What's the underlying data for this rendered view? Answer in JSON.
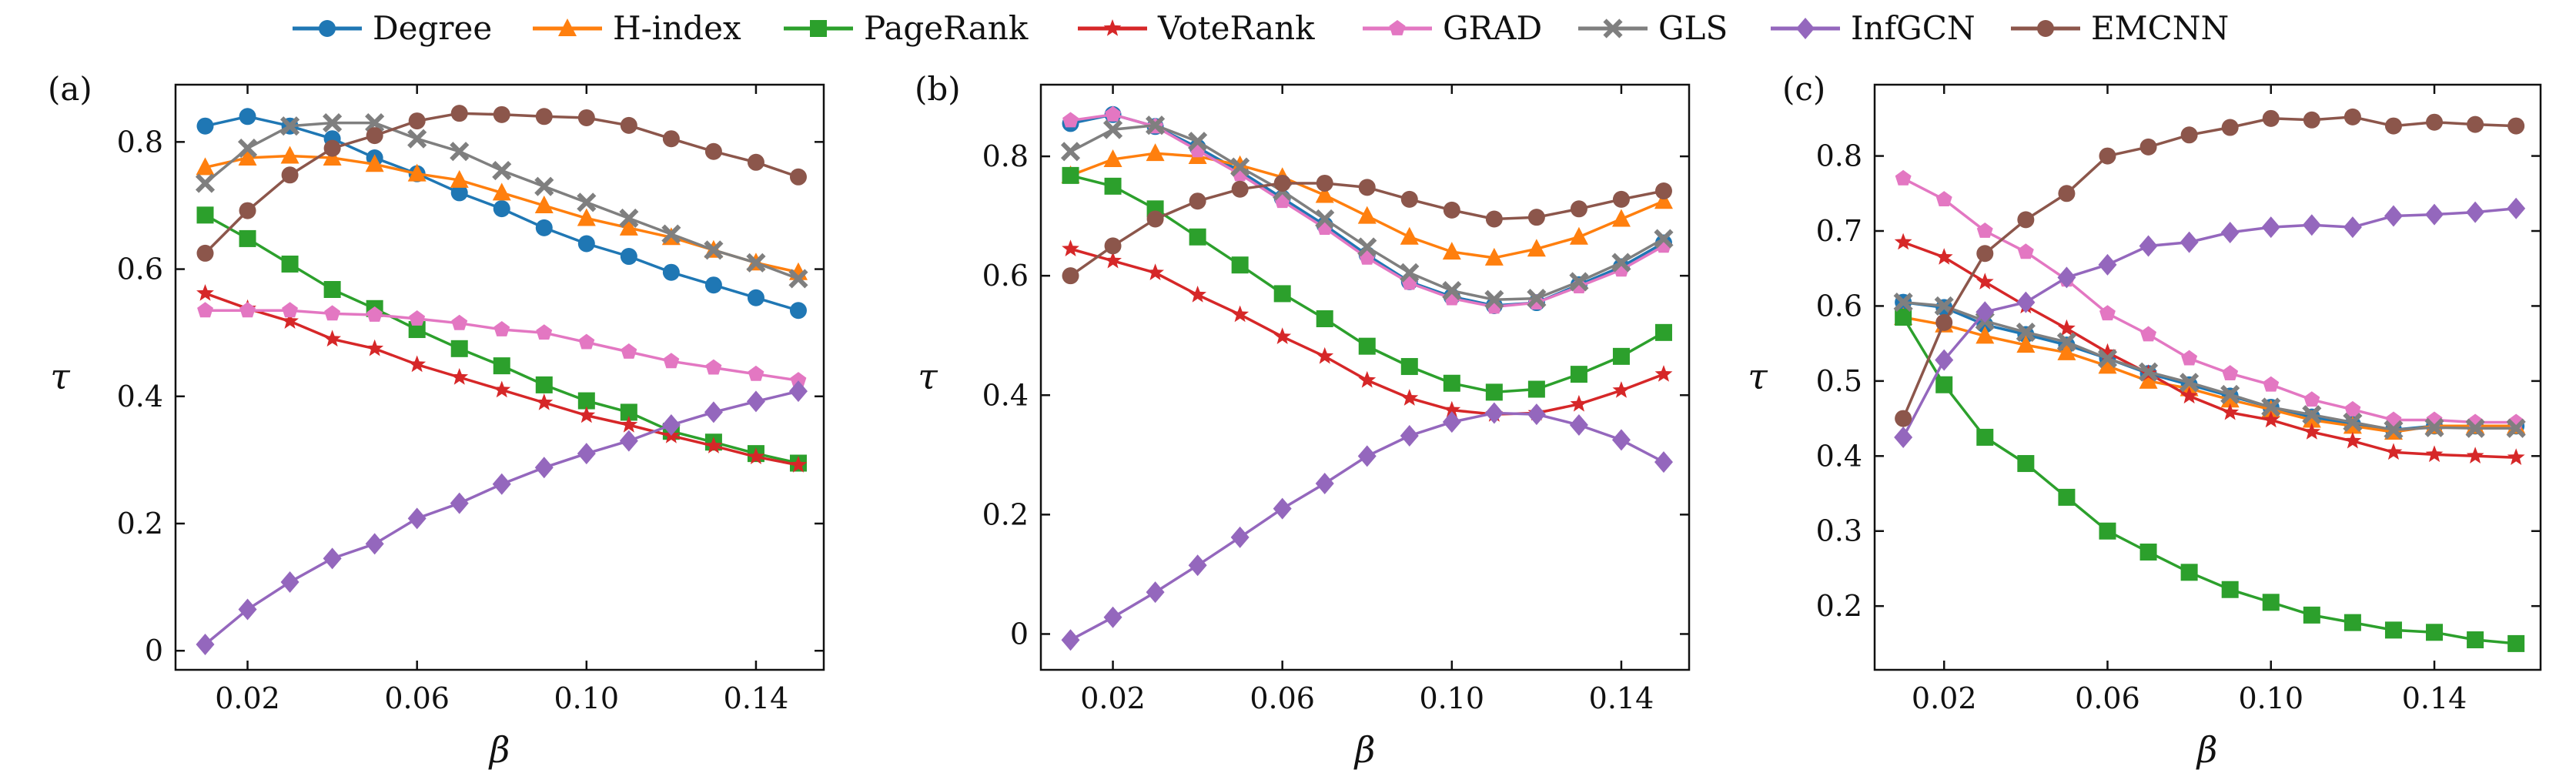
{
  "chart_data": {
    "type": "line",
    "x": [
      0.01,
      0.02,
      0.03,
      0.04,
      0.05,
      0.06,
      0.07,
      0.08,
      0.09,
      0.1,
      0.11,
      0.12,
      0.13,
      0.14,
      0.15
    ],
    "legend": [
      {
        "name": "Degree",
        "color": "#1f77b4",
        "marker": "circle"
      },
      {
        "name": "H-index",
        "color": "#ff7f0e",
        "marker": "triangle"
      },
      {
        "name": "PageRank",
        "color": "#2ca02c",
        "marker": "square"
      },
      {
        "name": "VoteRank",
        "color": "#d62728",
        "marker": "star"
      },
      {
        "name": "GRAD",
        "color": "#e377c2",
        "marker": "pentagon"
      },
      {
        "name": "GLS",
        "color": "#7f7f7f",
        "marker": "x"
      },
      {
        "name": "InfGCN",
        "color": "#9467bd",
        "marker": "diamond"
      },
      {
        "name": "EMCNN",
        "color": "#8c564b",
        "marker": "circle"
      }
    ],
    "panels": [
      {
        "label": "(a)",
        "xlabel": "β",
        "ylabel": "τ",
        "xlim": [
          0.003,
          0.156
        ],
        "ylim": [
          -0.03,
          0.89
        ],
        "xticks": [
          0.02,
          0.06,
          0.1,
          0.14
        ],
        "xtick_labels": [
          "0.02",
          "0.06",
          "0.10",
          "0.14"
        ],
        "yticks": [
          0,
          0.2,
          0.4,
          0.6,
          0.8
        ],
        "ytick_labels": [
          "0",
          "0.2",
          "0.4",
          "0.6",
          "0.8"
        ],
        "series": [
          {
            "name": "Degree",
            "values": [
              0.825,
              0.84,
              0.825,
              0.805,
              0.775,
              0.75,
              0.72,
              0.695,
              0.665,
              0.64,
              0.62,
              0.595,
              0.575,
              0.555,
              0.535
            ]
          },
          {
            "name": "H-index",
            "values": [
              0.76,
              0.775,
              0.778,
              0.775,
              0.765,
              0.75,
              0.74,
              0.72,
              0.7,
              0.68,
              0.665,
              0.65,
              0.63,
              0.61,
              0.595
            ]
          },
          {
            "name": "PageRank",
            "values": [
              0.685,
              0.648,
              0.608,
              0.568,
              0.538,
              0.505,
              0.475,
              0.448,
              0.418,
              0.393,
              0.375,
              0.345,
              0.328,
              0.31,
              0.295
            ]
          },
          {
            "name": "VoteRank",
            "values": [
              0.562,
              0.538,
              0.518,
              0.49,
              0.475,
              0.45,
              0.43,
              0.41,
              0.39,
              0.37,
              0.355,
              0.338,
              0.322,
              0.305,
              0.292
            ]
          },
          {
            "name": "GRAD",
            "values": [
              0.535,
              0.535,
              0.535,
              0.53,
              0.528,
              0.522,
              0.515,
              0.505,
              0.5,
              0.485,
              0.47,
              0.455,
              0.445,
              0.435,
              0.425
            ]
          },
          {
            "name": "GLS",
            "values": [
              0.735,
              0.79,
              0.825,
              0.83,
              0.83,
              0.805,
              0.785,
              0.755,
              0.73,
              0.705,
              0.68,
              0.655,
              0.63,
              0.61,
              0.585
            ]
          },
          {
            "name": "InfGCN",
            "values": [
              0.01,
              0.065,
              0.108,
              0.145,
              0.168,
              0.208,
              0.232,
              0.262,
              0.288,
              0.31,
              0.33,
              0.355,
              0.375,
              0.392,
              0.408
            ]
          },
          {
            "name": "EMCNN",
            "values": [
              0.625,
              0.692,
              0.748,
              0.79,
              0.81,
              0.833,
              0.845,
              0.843,
              0.84,
              0.838,
              0.826,
              0.805,
              0.785,
              0.768,
              0.745
            ]
          }
        ]
      },
      {
        "label": "(b)",
        "xlabel": "β",
        "ylabel": "τ",
        "xlim": [
          0.003,
          0.156
        ],
        "ylim": [
          -0.06,
          0.92
        ],
        "xticks": [
          0.02,
          0.06,
          0.1,
          0.14
        ],
        "xtick_labels": [
          "0.02",
          "0.06",
          "0.10",
          "0.14"
        ],
        "yticks": [
          0,
          0.2,
          0.4,
          0.6,
          0.8
        ],
        "ytick_labels": [
          "0",
          "0.2",
          "0.4",
          "0.6",
          "0.8"
        ],
        "series": [
          {
            "name": "Degree",
            "values": [
              0.855,
              0.87,
              0.85,
              0.815,
              0.775,
              0.73,
              0.685,
              0.635,
              0.59,
              0.565,
              0.55,
              0.555,
              0.585,
              0.615,
              0.655
            ]
          },
          {
            "name": "H-index",
            "values": [
              0.768,
              0.795,
              0.805,
              0.8,
              0.785,
              0.765,
              0.735,
              0.7,
              0.665,
              0.64,
              0.63,
              0.645,
              0.665,
              0.695,
              0.725
            ]
          },
          {
            "name": "PageRank",
            "values": [
              0.768,
              0.75,
              0.712,
              0.665,
              0.618,
              0.57,
              0.528,
              0.482,
              0.448,
              0.42,
              0.405,
              0.41,
              0.435,
              0.465,
              0.505
            ]
          },
          {
            "name": "VoteRank",
            "values": [
              0.645,
              0.625,
              0.605,
              0.568,
              0.535,
              0.498,
              0.465,
              0.425,
              0.395,
              0.375,
              0.368,
              0.37,
              0.385,
              0.408,
              0.435
            ]
          },
          {
            "name": "GRAD",
            "values": [
              0.86,
              0.87,
              0.85,
              0.81,
              0.77,
              0.725,
              0.68,
              0.63,
              0.588,
              0.562,
              0.548,
              0.555,
              0.582,
              0.61,
              0.65
            ]
          },
          {
            "name": "GLS",
            "values": [
              0.808,
              0.845,
              0.852,
              0.825,
              0.782,
              0.742,
              0.695,
              0.648,
              0.605,
              0.575,
              0.56,
              0.562,
              0.59,
              0.622,
              0.662
            ]
          },
          {
            "name": "InfGCN",
            "values": [
              -0.01,
              0.028,
              0.07,
              0.115,
              0.162,
              0.21,
              0.252,
              0.298,
              0.332,
              0.355,
              0.37,
              0.368,
              0.35,
              0.325,
              0.288
            ]
          },
          {
            "name": "EMCNN",
            "values": [
              0.6,
              0.65,
              0.695,
              0.725,
              0.745,
              0.755,
              0.755,
              0.748,
              0.728,
              0.71,
              0.695,
              0.698,
              0.712,
              0.728,
              0.742
            ]
          }
        ]
      },
      {
        "label": "(c)",
        "xlabel": "β",
        "ylabel": "τ",
        "xlim": [
          0.003,
          0.166
        ],
        "ylim": [
          0.115,
          0.895
        ],
        "xticks": [
          0.02,
          0.06,
          0.1,
          0.14
        ],
        "xtick_labels": [
          "0.02",
          "0.06",
          "0.10",
          "0.14"
        ],
        "yticks": [
          0.2,
          0.3,
          0.4,
          0.5,
          0.6,
          0.7,
          0.8
        ],
        "ytick_labels": [
          "0.2",
          "0.3",
          "0.4",
          "0.5",
          "0.6",
          "0.7",
          "0.8"
        ],
        "x": [
          0.01,
          0.02,
          0.03,
          0.04,
          0.05,
          0.06,
          0.07,
          0.08,
          0.09,
          0.1,
          0.11,
          0.12,
          0.13,
          0.14,
          0.15,
          0.16
        ],
        "series": [
          {
            "name": "Degree",
            "values": [
              0.605,
              0.598,
              0.575,
              0.562,
              0.548,
              0.53,
              0.51,
              0.495,
              0.48,
              0.465,
              0.452,
              0.442,
              0.435,
              0.44,
              0.44,
              0.44
            ]
          },
          {
            "name": "H-index",
            "values": [
              0.585,
              0.575,
              0.56,
              0.548,
              0.538,
              0.52,
              0.5,
              0.49,
              0.475,
              0.462,
              0.448,
              0.44,
              0.432,
              0.44,
              0.44,
              0.44
            ]
          },
          {
            "name": "PageRank",
            "values": [
              0.585,
              0.495,
              0.425,
              0.39,
              0.345,
              0.3,
              0.272,
              0.245,
              0.222,
              0.205,
              0.188,
              0.178,
              0.168,
              0.165,
              0.155,
              0.15
            ]
          },
          {
            "name": "VoteRank",
            "values": [
              0.685,
              0.665,
              0.632,
              0.6,
              0.57,
              0.538,
              0.51,
              0.48,
              0.458,
              0.448,
              0.432,
              0.42,
              0.405,
              0.402,
              0.4,
              0.398
            ]
          },
          {
            "name": "GRAD",
            "values": [
              0.77,
              0.742,
              0.7,
              0.672,
              0.635,
              0.59,
              0.562,
              0.53,
              0.51,
              0.495,
              0.475,
              0.462,
              0.448,
              0.448,
              0.445,
              0.445
            ]
          },
          {
            "name": "GLS",
            "values": [
              0.605,
              0.6,
              0.58,
              0.565,
              0.552,
              0.53,
              0.512,
              0.498,
              0.482,
              0.465,
              0.455,
              0.445,
              0.435,
              0.438,
              0.437,
              0.437
            ]
          },
          {
            "name": "InfGCN",
            "values": [
              0.425,
              0.528,
              0.592,
              0.605,
              0.638,
              0.655,
              0.68,
              0.685,
              0.698,
              0.705,
              0.708,
              0.705,
              0.72,
              0.722,
              0.725,
              0.73
            ]
          },
          {
            "name": "EMCNN",
            "values": [
              0.45,
              0.578,
              0.67,
              0.715,
              0.75,
              0.8,
              0.812,
              0.828,
              0.838,
              0.85,
              0.848,
              0.852,
              0.84,
              0.845,
              0.842,
              0.84
            ]
          }
        ]
      }
    ]
  }
}
